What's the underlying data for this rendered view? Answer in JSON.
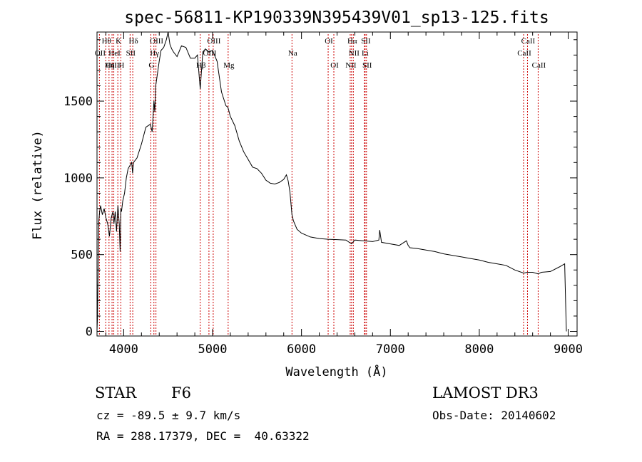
{
  "title": "spec-56811-KP190339N395439V01_sp13-125.fits",
  "info": {
    "class_label": "STAR",
    "subclass": "F6",
    "survey": "LAMOST DR3",
    "cz": "cz = -89.5 ± 9.7 km/s",
    "obs_date": "Obs-Date: 20140602",
    "coords": "RA = 288.17379, DEC =  40.63322"
  },
  "colors": {
    "spectrum": "#000000",
    "line_marker": "#cc0000",
    "axes": "#000000"
  },
  "chart_data": {
    "type": "line",
    "title": "spec-56811-KP190339N395439V01_sp13-125.fits",
    "xlabel": "Wavelength (Å)",
    "ylabel": "Flux (relative)",
    "xlim": [
      3700,
      9100
    ],
    "ylim": [
      -30,
      1950
    ],
    "xticks": [
      4000,
      5000,
      6000,
      7000,
      8000,
      9000
    ],
    "yticks": [
      0,
      500,
      1000,
      1500
    ],
    "series": [
      {
        "name": "spectrum",
        "x": [
          3700,
          3705,
          3712,
          3720,
          3730,
          3740,
          3760,
          3780,
          3800,
          3820,
          3840,
          3860,
          3880,
          3890,
          3905,
          3920,
          3935,
          3950,
          3960,
          3968,
          3975,
          3990,
          4010,
          4030,
          4050,
          4070,
          4090,
          4100,
          4110,
          4150,
          4200,
          4250,
          4300,
          4320,
          4340,
          4350,
          4360,
          4400,
          4420,
          4450,
          4480,
          4500,
          4520,
          4540,
          4560,
          4600,
          4650,
          4700,
          4750,
          4800,
          4830,
          4861,
          4890,
          4920,
          4960,
          5000,
          5050,
          5100,
          5150,
          5172,
          5200,
          5250,
          5300,
          5350,
          5400,
          5450,
          5500,
          5550,
          5600,
          5650,
          5700,
          5750,
          5800,
          5830,
          5850,
          5870,
          5893,
          5910,
          5950,
          6000,
          6100,
          6200,
          6300,
          6400,
          6500,
          6563,
          6600,
          6700,
          6800,
          6870,
          6880,
          6900,
          7000,
          7100,
          7180,
          7200,
          7220,
          7300,
          7400,
          7500,
          7600,
          7700,
          7800,
          7900,
          8000,
          8100,
          8200,
          8300,
          8400,
          8500,
          8542,
          8600,
          8662,
          8700,
          8800,
          8900,
          8960,
          8975,
          8980
        ],
        "y": [
          10,
          80,
          400,
          720,
          780,
          820,
          760,
          800,
          740,
          700,
          620,
          740,
          780,
          700,
          780,
          650,
          820,
          700,
          520,
          800,
          780,
          850,
          900,
          1000,
          1060,
          1080,
          1100,
          1030,
          1100,
          1130,
          1220,
          1330,
          1350,
          1300,
          1500,
          1430,
          1600,
          1760,
          1830,
          1850,
          1900,
          1950,
          1870,
          1840,
          1820,
          1790,
          1860,
          1850,
          1780,
          1780,
          1800,
          1580,
          1820,
          1840,
          1820,
          1830,
          1760,
          1560,
          1470,
          1460,
          1400,
          1340,
          1240,
          1170,
          1120,
          1070,
          1060,
          1030,
          985,
          965,
          960,
          970,
          990,
          1020,
          980,
          910,
          760,
          720,
          665,
          640,
          615,
          605,
          600,
          598,
          595,
          570,
          595,
          590,
          585,
          595,
          660,
          580,
          570,
          560,
          590,
          560,
          545,
          540,
          530,
          520,
          505,
          495,
          485,
          475,
          465,
          450,
          440,
          430,
          400,
          380,
          385,
          385,
          375,
          385,
          390,
          420,
          440,
          100,
          0
        ]
      }
    ],
    "spectral_lines": [
      {
        "label": "Hθ",
        "wavelength": 3798,
        "row": 1
      },
      {
        "label": "OII",
        "wavelength": 3727,
        "row": 2
      },
      {
        "label": "OIII",
        "wavelength": 3869,
        "row": 3
      },
      {
        "label": "Hη",
        "wavelength": 3835,
        "row": 3
      },
      {
        "label": "HeI",
        "wavelength": 3889,
        "row": 2
      },
      {
        "label": "K",
        "wavelength": 3934,
        "row": 1
      },
      {
        "label": "H",
        "wavelength": 3968,
        "row": 3
      },
      {
        "label": "SII",
        "wavelength": 4072,
        "row": 2
      },
      {
        "label": "Hδ",
        "wavelength": 4102,
        "row": 1
      },
      {
        "label": "Hγ",
        "wavelength": 4340,
        "row": 2
      },
      {
        "label": "G",
        "wavelength": 4305,
        "row": 3
      },
      {
        "label": "OIII",
        "wavelength": 4363,
        "row": 1
      },
      {
        "label": "Hβ",
        "wavelength": 4861,
        "row": 3
      },
      {
        "label": "OIII",
        "wavelength": 4959,
        "row": 2
      },
      {
        "label": "OIII",
        "wavelength": 5007,
        "row": 1
      },
      {
        "label": "Mg",
        "wavelength": 5175,
        "row": 3
      },
      {
        "label": "Na",
        "wavelength": 5893,
        "row": 2
      },
      {
        "label": "OI",
        "wavelength": 6300,
        "row": 1
      },
      {
        "label": "OI",
        "wavelength": 6364,
        "row": 3
      },
      {
        "label": "Hα",
        "wavelength": 6563,
        "row": 1
      },
      {
        "label": "NII",
        "wavelength": 6583,
        "row": 2
      },
      {
        "label": "NII",
        "wavelength": 6548,
        "row": 3
      },
      {
        "label": "SII",
        "wavelength": 6716,
        "row": 1
      },
      {
        "label": "Li",
        "wavelength": 6708,
        "row": 2
      },
      {
        "label": "SII",
        "wavelength": 6731,
        "row": 3
      },
      {
        "label": "CaII",
        "wavelength": 8542,
        "row": 1
      },
      {
        "label": "CaII",
        "wavelength": 8498,
        "row": 2
      },
      {
        "label": "CaII",
        "wavelength": 8662,
        "row": 3
      }
    ]
  }
}
